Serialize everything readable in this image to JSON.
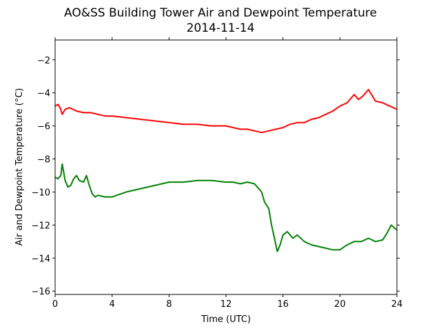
{
  "chart_data": {
    "type": "line",
    "title": "AO&SS Building Tower Air and Dewpoint Temperature",
    "subtitle": "2014-11-14",
    "xlabel": "Time (UTC)",
    "ylabel": "Air and Dewpoint Temperature (°C)",
    "xlim": [
      0,
      24
    ],
    "ylim": [
      -16.2,
      -0.8
    ],
    "xticks": [
      0,
      4,
      8,
      12,
      16,
      20,
      24
    ],
    "yticks": [
      -16,
      -14,
      -12,
      -10,
      -8,
      -6,
      -4,
      -2
    ],
    "grid": false,
    "legend": "none",
    "series": [
      {
        "color": "#ff0000",
        "x": [
          0,
          0.2,
          0.35,
          0.5,
          0.7,
          1,
          1.5,
          2,
          2.5,
          3,
          3.5,
          4,
          5,
          6,
          7,
          8,
          9,
          10,
          11,
          11.5,
          12,
          12.5,
          13,
          13.5,
          14,
          14.5,
          15,
          15.5,
          16,
          16.5,
          17,
          17.5,
          18,
          18.5,
          19,
          19.5,
          20,
          20.5,
          20.8,
          21,
          21.3,
          21.6,
          22,
          22.5,
          23,
          23.5,
          24
        ],
        "y": [
          -4.8,
          -4.7,
          -4.9,
          -5.3,
          -5.0,
          -4.9,
          -5.1,
          -5.2,
          -5.2,
          -5.3,
          -5.4,
          -5.4,
          -5.5,
          -5.6,
          -5.7,
          -5.8,
          -5.9,
          -5.9,
          -6.0,
          -6.0,
          -6.0,
          -6.1,
          -6.2,
          -6.2,
          -6.3,
          -6.4,
          -6.3,
          -6.2,
          -6.1,
          -5.9,
          -5.8,
          -5.8,
          -5.6,
          -5.5,
          -5.3,
          -5.1,
          -4.8,
          -4.6,
          -4.3,
          -4.1,
          -4.4,
          -4.2,
          -3.8,
          -4.5,
          -4.6,
          -4.8,
          -5.0
        ]
      },
      {
        "color": "#008000",
        "x": [
          0,
          0.2,
          0.4,
          0.5,
          0.7,
          0.9,
          1.1,
          1.3,
          1.5,
          1.7,
          2,
          2.2,
          2.4,
          2.6,
          2.8,
          3,
          3.5,
          4,
          5,
          6,
          7,
          8,
          9,
          10,
          11,
          12,
          12.5,
          13,
          13.5,
          14,
          14.2,
          14.5,
          14.7,
          15,
          15.2,
          15.4,
          15.6,
          15.8,
          16,
          16.3,
          16.7,
          17,
          17.5,
          18,
          18.5,
          19,
          19.5,
          20,
          20.5,
          21,
          21.5,
          22,
          22.5,
          23,
          23.3,
          23.6,
          24
        ],
        "y": [
          -9.1,
          -9.2,
          -9.0,
          -8.3,
          -9.3,
          -9.7,
          -9.6,
          -9.2,
          -9.0,
          -9.3,
          -9.4,
          -9.0,
          -9.6,
          -10.1,
          -10.3,
          -10.2,
          -10.3,
          -10.3,
          -10.0,
          -9.8,
          -9.6,
          -9.4,
          -9.4,
          -9.3,
          -9.3,
          -9.4,
          -9.4,
          -9.5,
          -9.4,
          -9.5,
          -9.7,
          -10.0,
          -10.6,
          -11.0,
          -12.0,
          -12.8,
          -13.6,
          -13.2,
          -12.6,
          -12.4,
          -12.8,
          -12.6,
          -13.0,
          -13.2,
          -13.3,
          -13.4,
          -13.5,
          -13.5,
          -13.2,
          -13.0,
          -13.0,
          -12.8,
          -13.0,
          -12.9,
          -12.5,
          -12.0,
          -12.3
        ]
      }
    ]
  }
}
